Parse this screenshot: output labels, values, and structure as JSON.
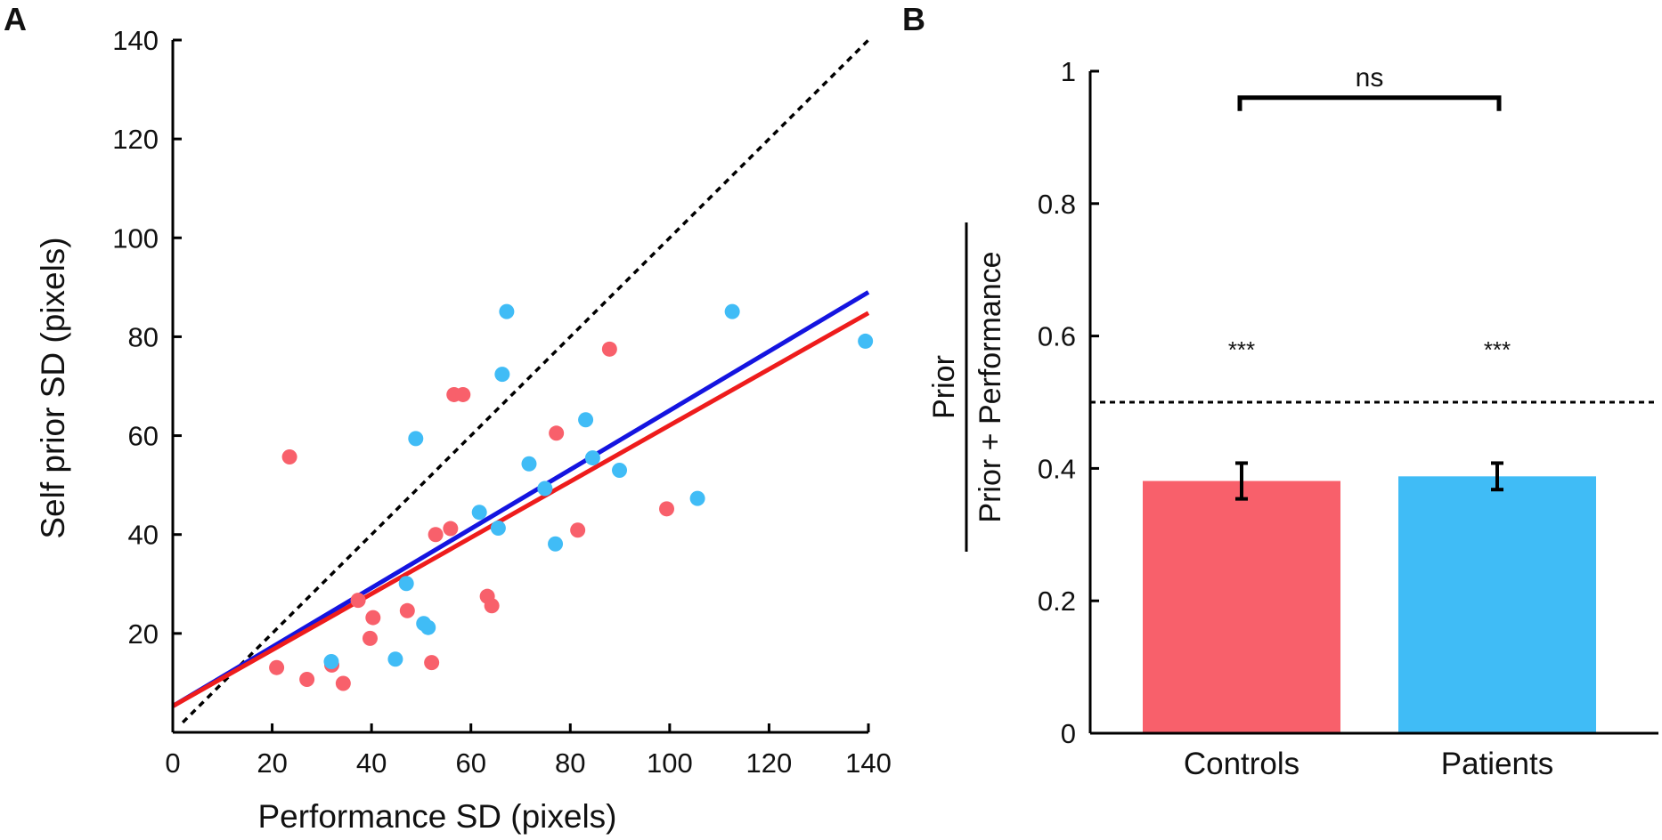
{
  "colors": {
    "controls": "#f8606b",
    "patients": "#40bcf6",
    "controls_line": "#ee1c1c",
    "patients_line": "#1414e0",
    "axis": "#000000"
  },
  "chart_data": [
    {
      "panel_label": "A",
      "type": "scatter",
      "xlabel": "Performance SD (pixels)",
      "ylabel": "Self prior SD (pixels)",
      "xlim": [
        0,
        140
      ],
      "ylim": [
        0,
        140
      ],
      "xticks": [
        "0",
        "20",
        "40",
        "60",
        "80",
        "100",
        "120",
        "140"
      ],
      "yticks": [
        "20",
        "40",
        "60",
        "80",
        "100",
        "120",
        "140"
      ],
      "identity_line": {
        "style": "dotted",
        "x": [
          2,
          140
        ],
        "y": [
          2,
          140
        ]
      },
      "series": [
        {
          "name": "Controls",
          "color": "#f8606b",
          "points": [
            [
              23.5,
              55.7
            ],
            [
              20.9,
              13.1
            ],
            [
              27.0,
              10.7
            ],
            [
              32.0,
              13.6
            ],
            [
              34.3,
              9.9
            ],
            [
              37.3,
              26.7
            ],
            [
              39.7,
              19.0
            ],
            [
              40.3,
              23.2
            ],
            [
              47.2,
              24.6
            ],
            [
              52.1,
              14.1
            ],
            [
              52.9,
              40.0
            ],
            [
              55.9,
              41.2
            ],
            [
              56.6,
              68.3
            ],
            [
              58.4,
              68.3
            ],
            [
              63.3,
              27.5
            ],
            [
              64.2,
              25.6
            ],
            [
              77.2,
              60.5
            ],
            [
              81.5,
              40.9
            ],
            [
              87.9,
              77.5
            ],
            [
              99.4,
              45.2
            ]
          ]
        },
        {
          "name": "Patients",
          "color": "#40bcf6",
          "points": [
            [
              31.9,
              14.3
            ],
            [
              44.8,
              14.8
            ],
            [
              47.0,
              30.1
            ],
            [
              48.9,
              59.4
            ],
            [
              50.5,
              22.0
            ],
            [
              51.4,
              21.2
            ],
            [
              61.7,
              44.5
            ],
            [
              65.5,
              41.3
            ],
            [
              66.3,
              72.4
            ],
            [
              67.2,
              85.1
            ],
            [
              71.7,
              54.3
            ],
            [
              74.9,
              49.3
            ],
            [
              77.0,
              38.1
            ],
            [
              83.1,
              63.2
            ],
            [
              84.5,
              55.5
            ],
            [
              89.9,
              53.0
            ],
            [
              105.6,
              47.3
            ],
            [
              112.6,
              85.1
            ],
            [
              139.4,
              79.1
            ]
          ]
        }
      ],
      "fit_lines": [
        {
          "name": "Patients fit",
          "color": "#1414e0",
          "x": [
            0,
            140
          ],
          "y": [
            5.3,
            89.0
          ]
        },
        {
          "name": "Controls fit",
          "color": "#ee1c1c",
          "x": [
            0,
            140
          ],
          "y": [
            5.3,
            84.8
          ]
        }
      ]
    },
    {
      "panel_label": "B",
      "type": "bar",
      "ylabel_numerator": "Prior",
      "ylabel_denominator": "Prior + Performance",
      "ylim": [
        0,
        1
      ],
      "yticks": [
        "0",
        "0.2",
        "0.4",
        "0.6",
        "0.8",
        "1"
      ],
      "categories": [
        "Controls",
        "Patients"
      ],
      "values": [
        0.381,
        0.388
      ],
      "errors": [
        0.027,
        0.02
      ],
      "bar_colors": [
        "#f8606b",
        "#40bcf6"
      ],
      "reference_line": {
        "style": "dashed",
        "y": 0.5
      },
      "significance": [
        "***",
        "***"
      ],
      "comparison": {
        "label": "ns",
        "between": [
          "Controls",
          "Patients"
        ],
        "y": 0.96
      }
    }
  ]
}
